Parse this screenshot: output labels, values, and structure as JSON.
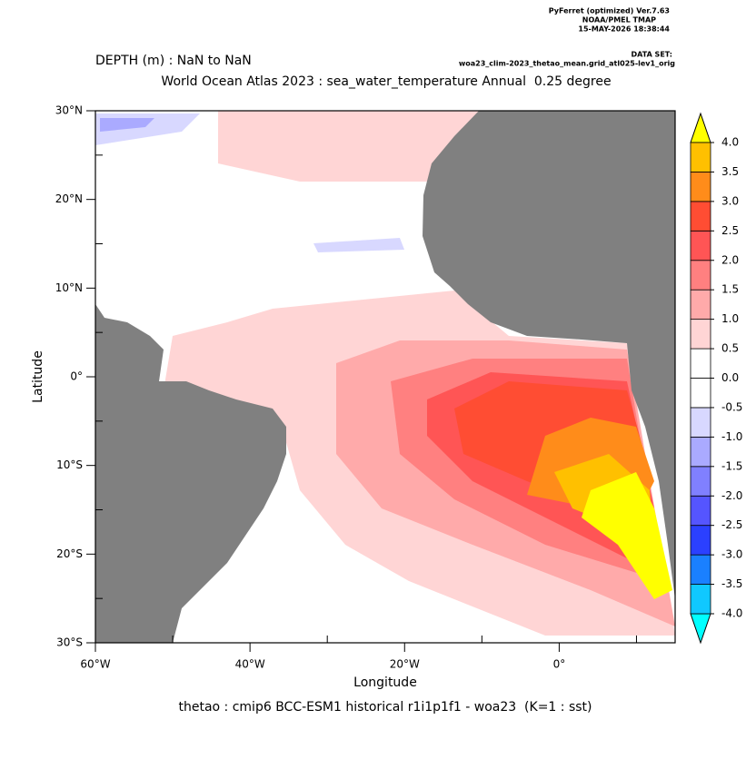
{
  "header": {
    "lines": [
      "PyFerret (optimized) Ver.7.63",
      "NOAA/PMEL TMAP",
      "15-MAY-2026 18:38:44"
    ],
    "dataset_label": "DATA SET:",
    "dataset": "woa23_clim-2023_thetao_mean.grid_atl025-lev1_orig"
  },
  "chart_data": {
    "type": "heatmap",
    "subtitle": "DEPTH (m) : NaN to NaN",
    "title": "World Ocean Atlas 2023 : sea_water_temperature Annual  0.25 degree",
    "xlabel": "Longitude",
    "ylabel": "Latitude",
    "footer": "thetao : cmip6 BCC-ESM1 historical r1i1p1f1 - woa23  (K=1 : sst)",
    "xlim": [
      -60,
      15
    ],
    "ylim": [
      -30,
      30
    ],
    "xticks": [
      {
        "value": -60,
        "label": "60°W"
      },
      {
        "value": -40,
        "label": "40°W"
      },
      {
        "value": -20,
        "label": "20°W"
      },
      {
        "value": 0,
        "label": "0°"
      }
    ],
    "xminorticks": [
      -50,
      -30,
      -10,
      10
    ],
    "yticks": [
      {
        "value": -30,
        "label": "30°S"
      },
      {
        "value": -20,
        "label": "20°S"
      },
      {
        "value": -10,
        "label": "10°S"
      },
      {
        "value": 0,
        "label": "0°"
      },
      {
        "value": 10,
        "label": "10°N"
      },
      {
        "value": 20,
        "label": "20°N"
      },
      {
        "value": 30,
        "label": "30°N"
      }
    ],
    "yminorticks": [
      -25,
      -15,
      -5,
      5,
      15,
      25
    ],
    "land_color": "#808080",
    "colorbar": {
      "levels": [
        {
          "value": -4,
          "label": "-4.0"
        },
        {
          "value": -3.5,
          "label": "-3.5"
        },
        {
          "value": -3,
          "label": "-3.0"
        },
        {
          "value": -2.5,
          "label": "-2.5"
        },
        {
          "value": -2,
          "label": "-2.0"
        },
        {
          "value": -1.5,
          "label": "-1.5"
        },
        {
          "value": -1,
          "label": "-1.0"
        },
        {
          "value": -0.5,
          "label": "-0.5"
        },
        {
          "value": 0,
          "label": "0.0"
        },
        {
          "value": 0.5,
          "label": "0.5"
        },
        {
          "value": 1,
          "label": "1.0"
        },
        {
          "value": 1.5,
          "label": "1.5"
        },
        {
          "value": 2,
          "label": "2.0"
        },
        {
          "value": 2.5,
          "label": "2.5"
        },
        {
          "value": 3,
          "label": "3.0"
        },
        {
          "value": 3.5,
          "label": "3.5"
        },
        {
          "value": 4,
          "label": "4.0"
        }
      ],
      "colors": [
        "#00ffff",
        "#10c8ff",
        "#1a80ff",
        "#2b40ff",
        "#5555ff",
        "#8080ff",
        "#aaaaff",
        "#d8d8ff",
        "#ffffff",
        "#ffffff",
        "#ffd5d5",
        "#ffaaaa",
        "#ff8080",
        "#ff5555",
        "#ff4d33",
        "#ff8c1a",
        "#ffc000",
        "#ffff00"
      ]
    }
  }
}
